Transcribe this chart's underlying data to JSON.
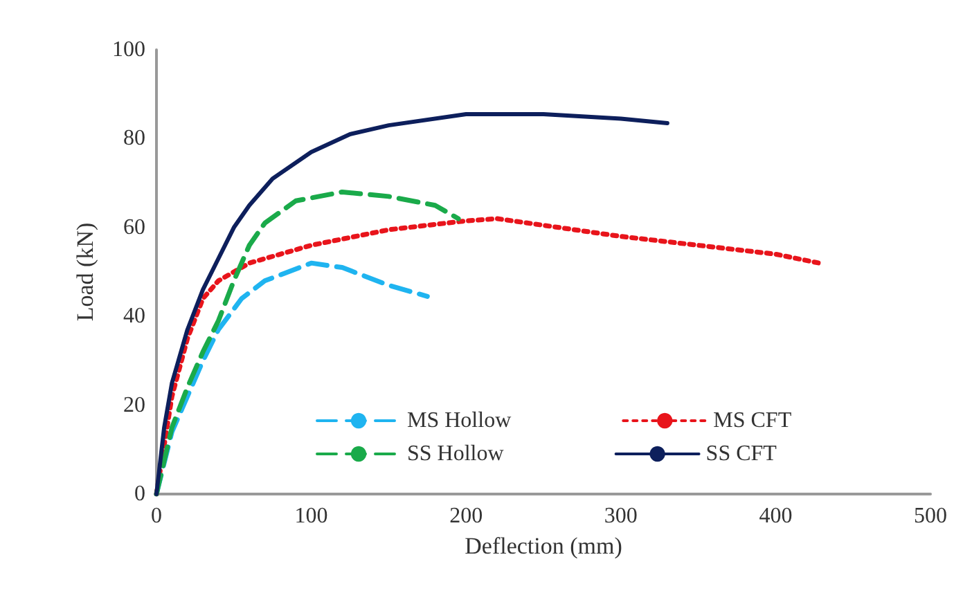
{
  "chart_data": {
    "type": "line",
    "xlabel": "Deflection (mm)",
    "ylabel": "Load (kN)",
    "xlim": [
      0,
      500
    ],
    "xticks": [
      0,
      100,
      200,
      300,
      400,
      500
    ],
    "ylim": [
      0,
      100
    ],
    "yticks": [
      0,
      20,
      40,
      60,
      80,
      100
    ],
    "grid": false,
    "legend": "bottom right",
    "marker": "none",
    "series": [
      {
        "name": "MS Hollow",
        "color": "#1fb4f0",
        "line_style": "dashed",
        "x": [
          0,
          10,
          20,
          30,
          40,
          55,
          70,
          100,
          120,
          150,
          175
        ],
        "values": [
          0,
          14,
          22,
          30,
          37,
          44,
          48,
          52,
          51,
          47,
          44.5
        ]
      },
      {
        "name": "MS CFT",
        "color": "#e8141b",
        "line_style": "dotted",
        "x": [
          0,
          10,
          20,
          30,
          40,
          60,
          100,
          150,
          200,
          220,
          250,
          300,
          350,
          400,
          428
        ],
        "values": [
          0,
          22,
          35,
          44,
          48,
          52,
          56,
          59.5,
          61.5,
          62,
          60.5,
          58,
          56,
          54,
          52
        ]
      },
      {
        "name": "SS Hollow",
        "color": "#1aaa4a",
        "line_style": "dashed",
        "x": [
          0,
          10,
          20,
          30,
          40,
          50,
          60,
          70,
          90,
          120,
          150,
          180,
          195
        ],
        "values": [
          0,
          15,
          24,
          32,
          39,
          48,
          56,
          61,
          66,
          68,
          67,
          65,
          62
        ]
      },
      {
        "name": "SS CFT",
        "color": "#0d1f5c",
        "line_style": "solid",
        "x": [
          0,
          5,
          10,
          20,
          30,
          40,
          50,
          60,
          75,
          100,
          125,
          150,
          200,
          250,
          300,
          330
        ],
        "values": [
          0,
          15,
          25,
          37,
          46,
          53,
          60,
          65,
          71,
          77,
          81,
          83,
          85.5,
          85.5,
          84.5,
          83.5
        ]
      }
    ]
  }
}
